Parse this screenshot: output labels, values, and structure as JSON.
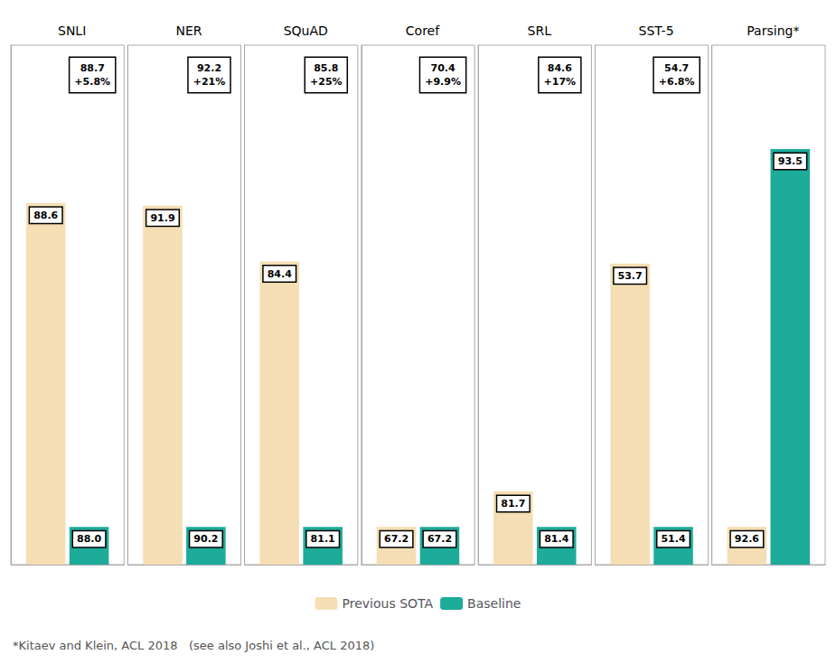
{
  "chart_data": [
    {
      "type": "bar",
      "title": "SNLI",
      "categories": [
        null
      ],
      "series": [
        {
          "name": "Previous SOTA",
          "color": "#F5DEB3",
          "values": [
            88.6
          ]
        },
        {
          "name": "Baseline",
          "color": "#1DAB9A",
          "values": [
            88.0
          ],
          "value_labels": [
            "88.0"
          ]
        }
      ],
      "ylim": [
        87.93,
        88.8925
      ],
      "tick_labels": false,
      "grid": false,
      "data_labels": true,
      "legend": "bottom",
      "annotations": [
        "88.7\n+5.8%"
      ]
    },
    {
      "type": "bar",
      "title": "NER",
      "categories": [
        null
      ],
      "series": [
        {
          "name": "Previous SOTA",
          "color": "#F5DEB3",
          "values": [
            91.9
          ]
        },
        {
          "name": "Baseline",
          "color": "#1DAB9A",
          "values": [
            90.2
          ]
        }
      ],
      "ylim": [
        90.0,
        92.75
      ],
      "tick_labels": false,
      "grid": false,
      "data_labels": true,
      "legend": "bottom",
      "annotations": [
        "92.2\n+21%"
      ]
    },
    {
      "type": "bar",
      "title": "SQuAD",
      "categories": [
        null
      ],
      "series": [
        {
          "name": "Previous SOTA",
          "color": "#F5DEB3",
          "values": [
            84.4
          ]
        },
        {
          "name": "Baseline",
          "color": "#1DAB9A",
          "values": [
            81.1
          ]
        }
      ],
      "ylim": [
        80.63,
        87.0925
      ],
      "tick_labels": false,
      "grid": false,
      "data_labels": true,
      "legend": "bottom",
      "annotations": [
        "85.8\n+25%"
      ]
    },
    {
      "type": "bar",
      "title": "Coref",
      "categories": [
        null
      ],
      "series": [
        {
          "name": "Previous SOTA",
          "color": "#F5DEB3",
          "values": [
            67.2
          ]
        },
        {
          "name": "Baseline",
          "color": "#1DAB9A",
          "values": [
            67.2
          ]
        }
      ],
      "ylim": [
        66.88,
        71.28
      ],
      "tick_labels": false,
      "grid": false,
      "data_labels": true,
      "legend": "bottom",
      "annotations": [
        "70.4\n+9.9%"
      ]
    },
    {
      "type": "bar",
      "title": "SRL",
      "categories": [
        null
      ],
      "series": [
        {
          "name": "Previous SOTA",
          "color": "#F5DEB3",
          "values": [
            81.7
          ]
        },
        {
          "name": "Baseline",
          "color": "#1DAB9A",
          "values": [
            81.4
          ]
        }
      ],
      "ylim": [
        81.08,
        85.48
      ],
      "tick_labels": false,
      "grid": false,
      "data_labels": true,
      "legend": "bottom",
      "annotations": [
        "84.6\n+17%"
      ]
    },
    {
      "type": "bar",
      "title": "SST-5",
      "categories": [
        null
      ],
      "series": [
        {
          "name": "Previous SOTA",
          "color": "#F5DEB3",
          "values": [
            53.7
          ]
        },
        {
          "name": "Baseline",
          "color": "#1DAB9A",
          "values": [
            51.4
          ]
        }
      ],
      "ylim": [
        51.07,
        55.6075
      ],
      "tick_labels": false,
      "grid": false,
      "data_labels": true,
      "legend": "bottom",
      "annotations": [
        "54.7\n+6.8%"
      ]
    },
    {
      "type": "bar",
      "title": "Parsing*",
      "categories": [
        null
      ],
      "series": [
        {
          "name": "Previous SOTA",
          "color": "#F5DEB3",
          "values": [
            92.6
          ]
        },
        {
          "name": "Baseline",
          "color": "#1DAB9A",
          "values": [
            93.5
          ]
        }
      ],
      "ylim": [
        92.51,
        93.7475
      ],
      "tick_labels": false,
      "grid": false,
      "data_labels": true,
      "legend": "bottom"
    }
  ],
  "footnote": "*Kitaev and Klein, ACL 2018   (see also Joshi et al., ACL 2018)"
}
